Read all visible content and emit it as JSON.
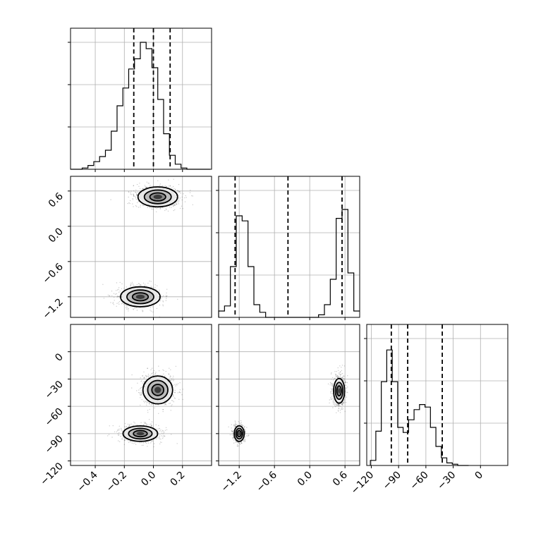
{
  "chart_data": {
    "type": "corner",
    "grid": true,
    "params": [
      {
        "range": [
          -0.57,
          0.4
        ],
        "ticks": [
          -0.4,
          -0.2,
          0.0,
          0.2
        ],
        "tick_labels": [
          "−0.4",
          "−0.2",
          "0.0",
          "0.2"
        ],
        "quantiles": [
          -0.135,
          0.0,
          0.115
        ],
        "hist_ymax": 1.0,
        "hist": {
          "bin_width": 0.04,
          "edges_start": -0.57,
          "heights": [
            0.0,
            0.0,
            0.01,
            0.03,
            0.06,
            0.1,
            0.15,
            0.3,
            0.5,
            0.64,
            0.79,
            0.87,
            1.0,
            0.95,
            0.8,
            0.55,
            0.28,
            0.11,
            0.04,
            0.01,
            0.0,
            0.0,
            0.0,
            0.0
          ]
        }
      },
      {
        "range": [
          -1.55,
          0.85
        ],
        "ticks": [
          -1.2,
          -0.6,
          0.0,
          0.6
        ],
        "tick_labels": [
          "−1.2",
          "−0.6",
          "0.0",
          "0.6"
        ],
        "quantiles": [
          -1.27,
          -0.37,
          0.55
        ],
        "hist_ymax": 1.0,
        "hist": {
          "bin_width": 0.1,
          "edges_start": -1.55,
          "heights": [
            0.05,
            0.09,
            0.4,
            0.8,
            0.76,
            0.4,
            0.1,
            0.04,
            0.0,
            0.0,
            0.0,
            0.0,
            0.0,
            0.0,
            0.0,
            0.0,
            0.0,
            0.02,
            0.1,
            0.3,
            0.78,
            0.85,
            0.35,
            0.05
          ]
        }
      },
      {
        "range": [
          -125,
          30
        ],
        "ticks": [
          -120,
          -90,
          -60,
          -30,
          0
        ],
        "tick_labels": [
          "−120",
          "−90",
          "−60",
          "−30",
          "0"
        ],
        "quantiles": [
          -98,
          -80,
          -42
        ],
        "hist_ymax": 1.0,
        "hist": {
          "bin_width": 6,
          "edges_start": -121,
          "heights": [
            0.04,
            0.27,
            0.66,
            0.91,
            0.66,
            0.3,
            0.26,
            0.36,
            0.44,
            0.48,
            0.46,
            0.3,
            0.15,
            0.06,
            0.02,
            0.01,
            0.0,
            0.0
          ]
        }
      }
    ],
    "pairs": [
      {
        "row": 1,
        "col": 0,
        "modes": [
          {
            "x": 0.03,
            "y": 0.5,
            "sx": 0.16,
            "sy": 0.2,
            "w": 0.55
          },
          {
            "x": -0.09,
            "y": -1.2,
            "sx": 0.16,
            "sy": 0.2,
            "w": 0.45
          }
        ]
      },
      {
        "row": 2,
        "col": 0,
        "modes": [
          {
            "x": 0.03,
            "y": -42,
            "sx": 0.12,
            "sy": 18,
            "w": 0.5
          },
          {
            "x": -0.09,
            "y": -90,
            "sx": 0.14,
            "sy": 10,
            "w": 0.5
          }
        ]
      },
      {
        "row": 2,
        "col": 1,
        "modes": [
          {
            "x": 0.5,
            "y": -43,
            "sx": 0.11,
            "sy": 16,
            "w": 0.55
          },
          {
            "x": -1.2,
            "y": -90,
            "sx": 0.1,
            "sy": 10,
            "w": 0.45
          }
        ]
      }
    ]
  }
}
